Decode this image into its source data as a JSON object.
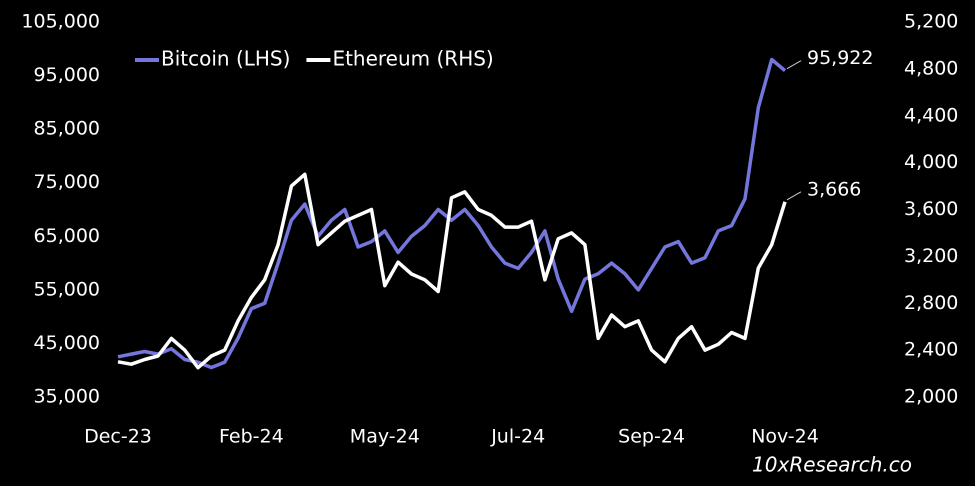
{
  "chart_data": {
    "type": "line",
    "categories": [
      "Dec-23",
      null,
      null,
      null,
      null,
      null,
      null,
      null,
      null,
      null,
      "Feb-24",
      null,
      null,
      null,
      null,
      null,
      null,
      null,
      null,
      null,
      "May-24",
      null,
      null,
      null,
      null,
      null,
      null,
      null,
      null,
      null,
      "Jul-24",
      null,
      null,
      null,
      null,
      null,
      null,
      null,
      null,
      null,
      "Sep-24",
      null,
      null,
      null,
      null,
      null,
      null,
      null,
      null,
      null,
      "Nov-24"
    ],
    "series": [
      {
        "name": "Bitcoin (LHS)",
        "color": "#7476dc",
        "axis": "y",
        "values": [
          42500,
          43000,
          43500,
          43000,
          44000,
          42000,
          41500,
          40500,
          41500,
          46000,
          51500,
          52500,
          60000,
          68000,
          71000,
          65000,
          68000,
          70000,
          63000,
          64000,
          66000,
          62000,
          65000,
          67000,
          70000,
          68000,
          70000,
          67000,
          63000,
          60000,
          59000,
          62000,
          66000,
          57000,
          51000,
          57000,
          58000,
          60000,
          58000,
          55000,
          59000,
          63000,
          64000,
          60000,
          61000,
          66000,
          67000,
          72000,
          89000,
          98000,
          95922
        ],
        "value_labels": [
          null,
          null,
          null,
          null,
          null,
          null,
          null,
          null,
          null,
          null,
          null,
          null,
          null,
          null,
          null,
          null,
          null,
          null,
          null,
          null,
          null,
          null,
          null,
          null,
          null,
          null,
          null,
          null,
          null,
          null,
          null,
          null,
          null,
          null,
          null,
          null,
          null,
          null,
          null,
          null,
          null,
          null,
          null,
          null,
          null,
          null,
          null,
          null,
          null,
          null,
          "95,922"
        ]
      },
      {
        "name": "Ethereum (RHS)",
        "color": "#ffffff",
        "axis": "y2",
        "values": [
          2300,
          2280,
          2320,
          2350,
          2500,
          2400,
          2250,
          2350,
          2400,
          2650,
          2850,
          3000,
          3300,
          3800,
          3900,
          3300,
          3400,
          3500,
          3550,
          3600,
          2950,
          3150,
          3050,
          3000,
          2900,
          3700,
          3750,
          3600,
          3550,
          3450,
          3450,
          3500,
          3000,
          3350,
          3400,
          3300,
          2500,
          2700,
          2600,
          2650,
          2400,
          2300,
          2500,
          2600,
          2400,
          2450,
          2550,
          2500,
          3100,
          3300,
          3666
        ],
        "value_labels": [
          null,
          null,
          null,
          null,
          null,
          null,
          null,
          null,
          null,
          null,
          null,
          null,
          null,
          null,
          null,
          null,
          null,
          null,
          null,
          null,
          null,
          null,
          null,
          null,
          null,
          null,
          null,
          null,
          null,
          null,
          null,
          null,
          null,
          null,
          null,
          null,
          null,
          null,
          null,
          null,
          null,
          null,
          null,
          null,
          null,
          null,
          null,
          null,
          null,
          null,
          "3,666"
        ]
      }
    ],
    "ylim": [
      35000,
      105000
    ],
    "yticks": [
      {
        "value": 35000,
        "label": "35,000"
      },
      {
        "value": 45000,
        "label": "45,000"
      },
      {
        "value": 55000,
        "label": "55,000"
      },
      {
        "value": 65000,
        "label": "65,000"
      },
      {
        "value": 75000,
        "label": "75,000"
      },
      {
        "value": 85000,
        "label": "85,000"
      },
      {
        "value": 95000,
        "label": "95,000"
      },
      {
        "value": 105000,
        "label": "105,000"
      }
    ],
    "y2lim": [
      2000,
      5200
    ],
    "y2ticks": [
      {
        "value": 2000,
        "label": "2,000"
      },
      {
        "value": 2400,
        "label": "2,400"
      },
      {
        "value": 2800,
        "label": "2,800"
      },
      {
        "value": 3200,
        "label": "3,200"
      },
      {
        "value": 3600,
        "label": "3,600"
      },
      {
        "value": 4000,
        "label": "4,000"
      },
      {
        "value": 4400,
        "label": "4,400"
      },
      {
        "value": 4800,
        "label": "4,800"
      },
      {
        "value": 5200,
        "label": "5,200"
      }
    ],
    "grid": false,
    "legend": "top-left",
    "source": "10xResearch.co"
  }
}
